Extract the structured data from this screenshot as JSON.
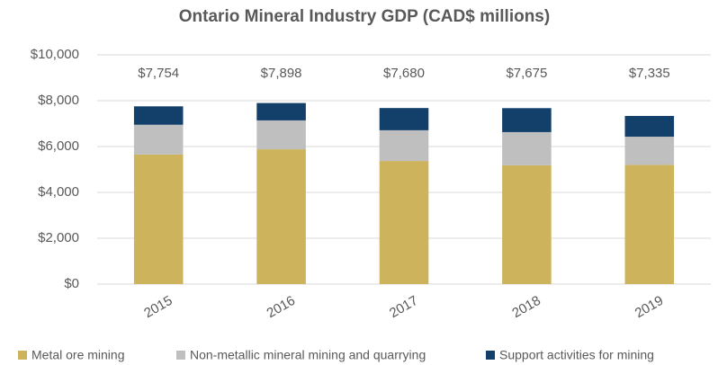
{
  "chart_data": {
    "type": "stacked_bar",
    "title": "Ontario Mineral Industry GDP (CAD$ millions)",
    "categories": [
      "2015",
      "2016",
      "2017",
      "2018",
      "2019"
    ],
    "series": [
      {
        "name": "Metal ore mining",
        "color": "#cdb35c",
        "values": [
          5650,
          5880,
          5370,
          5180,
          5200
        ]
      },
      {
        "name": "Non-metallic mineral mining and quarrying",
        "color": "#bfbfbf",
        "values": [
          1300,
          1260,
          1340,
          1450,
          1230
        ]
      },
      {
        "name": "Support activities for mining",
        "color": "#133f6b",
        "values": [
          804,
          758,
          970,
          1045,
          905
        ]
      }
    ],
    "total_labels": [
      "$7,754",
      "$7,898",
      "$7,680",
      "$7,675",
      "$7,335"
    ],
    "ylim": [
      0,
      10000
    ],
    "yticks": [
      {
        "value": 0,
        "label": "$0"
      },
      {
        "value": 2000,
        "label": "$2,000"
      },
      {
        "value": 4000,
        "label": "$4,000"
      },
      {
        "value": 6000,
        "label": "$6,000"
      },
      {
        "value": 8000,
        "label": "$8,000"
      },
      {
        "value": 10000,
        "label": "$10,000"
      }
    ],
    "grid": true,
    "legend": "bottom"
  }
}
